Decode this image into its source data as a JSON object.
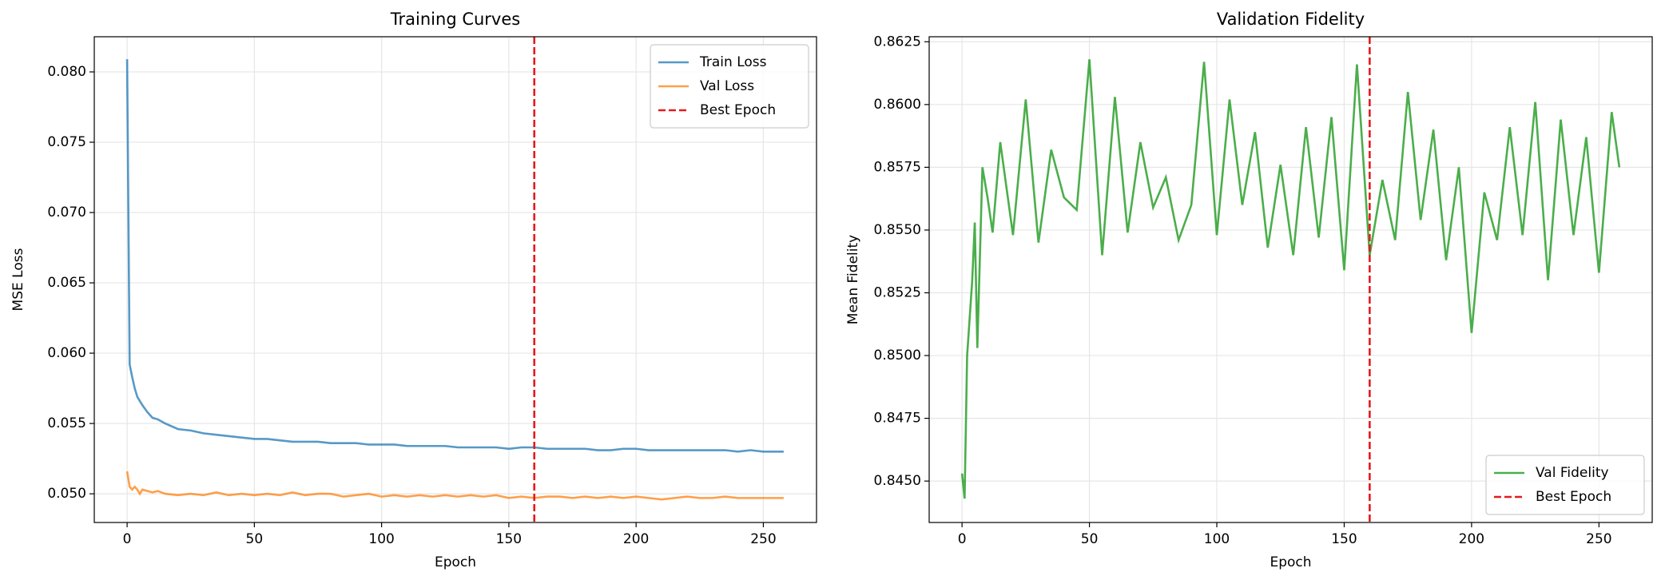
{
  "chart_data": [
    {
      "type": "line",
      "title": "Training Curves",
      "xlabel": "Epoch",
      "ylabel": "MSE Loss",
      "x": [
        0,
        1,
        2,
        3,
        4,
        5,
        6,
        8,
        10,
        12,
        15,
        20,
        25,
        30,
        35,
        40,
        45,
        50,
        55,
        60,
        65,
        70,
        75,
        80,
        85,
        90,
        95,
        100,
        105,
        110,
        115,
        120,
        125,
        130,
        135,
        140,
        145,
        150,
        155,
        160,
        165,
        170,
        175,
        180,
        185,
        190,
        195,
        200,
        205,
        210,
        215,
        220,
        225,
        230,
        235,
        240,
        245,
        250,
        255,
        258
      ],
      "series": [
        {
          "name": "Train Loss",
          "color": "#1f77b4",
          "alpha": 0.75,
          "values": [
            0.0809,
            0.0592,
            0.0583,
            0.0575,
            0.0569,
            0.0566,
            0.0563,
            0.0558,
            0.0554,
            0.0553,
            0.055,
            0.0546,
            0.0545,
            0.0543,
            0.0542,
            0.0541,
            0.054,
            0.0539,
            0.0539,
            0.0538,
            0.0537,
            0.0537,
            0.0537,
            0.0536,
            0.0536,
            0.0536,
            0.0535,
            0.0535,
            0.0535,
            0.0534,
            0.0534,
            0.0534,
            0.0534,
            0.0533,
            0.0533,
            0.0533,
            0.0533,
            0.0532,
            0.0533,
            0.0533,
            0.0532,
            0.0532,
            0.0532,
            0.0532,
            0.0531,
            0.0531,
            0.0532,
            0.0532,
            0.0531,
            0.0531,
            0.0531,
            0.0531,
            0.0531,
            0.0531,
            0.0531,
            0.053,
            0.0531,
            0.053,
            0.053,
            0.053
          ]
        },
        {
          "name": "Val Loss",
          "color": "#ff7f0e",
          "alpha": 0.75,
          "values": [
            0.0516,
            0.0505,
            0.0503,
            0.0505,
            0.0503,
            0.05,
            0.0503,
            0.0502,
            0.0501,
            0.0502,
            0.05,
            0.0499,
            0.05,
            0.0499,
            0.0501,
            0.0499,
            0.05,
            0.0499,
            0.05,
            0.0499,
            0.0501,
            0.0499,
            0.05,
            0.05,
            0.0498,
            0.0499,
            0.05,
            0.0498,
            0.0499,
            0.0498,
            0.0499,
            0.0498,
            0.0499,
            0.0498,
            0.0499,
            0.0498,
            0.0499,
            0.0497,
            0.0498,
            0.0497,
            0.0498,
            0.0498,
            0.0497,
            0.0498,
            0.0497,
            0.0498,
            0.0497,
            0.0498,
            0.0497,
            0.0496,
            0.0497,
            0.0498,
            0.0497,
            0.0497,
            0.0498,
            0.0497,
            0.0497,
            0.0497,
            0.0497,
            0.0497
          ]
        }
      ],
      "vlines": [
        {
          "name": "Best Epoch",
          "x": 160,
          "color": "#e41a1c"
        }
      ],
      "xlim": [
        -12.9,
        270.9
      ],
      "xticks": [
        0,
        50,
        100,
        150,
        200,
        250
      ],
      "ylim": [
        0.04796,
        0.0825
      ],
      "yticks": [
        {
          "value": 0.05,
          "label": "0.050"
        },
        {
          "value": 0.055,
          "label": "0.055"
        },
        {
          "value": 0.06,
          "label": "0.060"
        },
        {
          "value": 0.065,
          "label": "0.065"
        },
        {
          "value": 0.07,
          "label": "0.070"
        },
        {
          "value": 0.075,
          "label": "0.075"
        },
        {
          "value": 0.08,
          "label": "0.080"
        }
      ],
      "grid": true,
      "legend": "upper right"
    },
    {
      "type": "line",
      "title": "Validation Fidelity",
      "xlabel": "Epoch",
      "ylabel": "Mean Fidelity",
      "x": [
        0,
        1,
        2,
        3,
        4,
        5,
        6,
        8,
        10,
        12,
        15,
        20,
        25,
        30,
        35,
        40,
        45,
        50,
        55,
        60,
        65,
        70,
        75,
        80,
        85,
        90,
        95,
        100,
        105,
        110,
        115,
        120,
        125,
        130,
        135,
        140,
        145,
        150,
        155,
        160,
        165,
        170,
        175,
        180,
        185,
        190,
        195,
        200,
        205,
        210,
        215,
        220,
        225,
        230,
        235,
        240,
        245,
        250,
        255,
        258
      ],
      "series": [
        {
          "name": "Val Fidelity",
          "color": "#2ca02c",
          "alpha": 0.85,
          "values": [
            0.8453,
            0.8443,
            0.85,
            0.8515,
            0.853,
            0.8553,
            0.8503,
            0.8575,
            0.8563,
            0.8549,
            0.8585,
            0.8548,
            0.8602,
            0.8545,
            0.8582,
            0.8563,
            0.8558,
            0.8618,
            0.854,
            0.8603,
            0.8549,
            0.8585,
            0.8559,
            0.8571,
            0.8546,
            0.856,
            0.8617,
            0.8548,
            0.8602,
            0.856,
            0.8589,
            0.8543,
            0.8576,
            0.854,
            0.8591,
            0.8547,
            0.8595,
            0.8534,
            0.8616,
            0.854,
            0.857,
            0.8546,
            0.8605,
            0.8554,
            0.859,
            0.8538,
            0.8575,
            0.8509,
            0.8565,
            0.8546,
            0.8591,
            0.8548,
            0.8601,
            0.853,
            0.8594,
            0.8548,
            0.8587,
            0.8533,
            0.8597,
            0.8575
          ]
        }
      ],
      "vlines": [
        {
          "name": "Best Epoch",
          "x": 160,
          "color": "#e41a1c"
        }
      ],
      "xlim": [
        -12.9,
        270.9
      ],
      "xticks": [
        0,
        50,
        100,
        150,
        200,
        250
      ],
      "ylim": [
        0.84335,
        0.8627
      ],
      "yticks": [
        {
          "value": 0.845,
          "label": "0.8450"
        },
        {
          "value": 0.8475,
          "label": "0.8475"
        },
        {
          "value": 0.85,
          "label": "0.8500"
        },
        {
          "value": 0.8525,
          "label": "0.8525"
        },
        {
          "value": 0.855,
          "label": "0.8550"
        },
        {
          "value": 0.8575,
          "label": "0.8575"
        },
        {
          "value": 0.86,
          "label": "0.8600"
        },
        {
          "value": 0.8625,
          "label": "0.8625"
        }
      ],
      "grid": true,
      "legend": "lower right"
    }
  ]
}
